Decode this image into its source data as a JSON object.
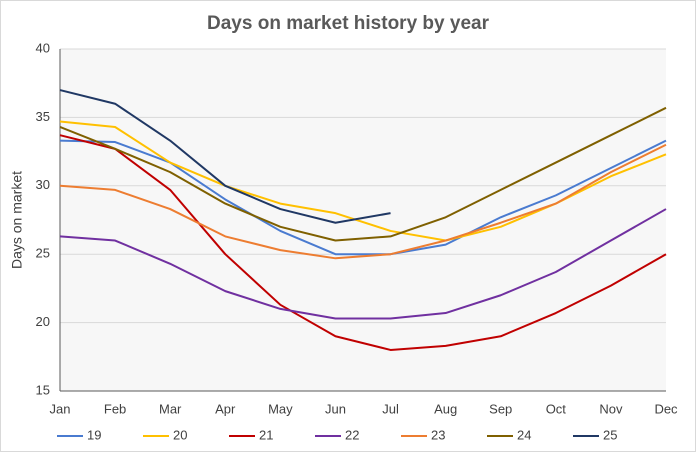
{
  "chart_data": {
    "type": "line",
    "title": "Days on market history by year",
    "y_label": "Days on market",
    "categories": [
      "Jan",
      "Feb",
      "Mar",
      "Apr",
      "May",
      "Jun",
      "Jul",
      "Aug",
      "Sep",
      "Oct",
      "Nov",
      "Dec"
    ],
    "ylim": [
      15,
      40
    ],
    "yticks": [
      15,
      20,
      25,
      30,
      35,
      40
    ],
    "grid": true,
    "legend": "bottom",
    "series": [
      {
        "name": "19",
        "color": "#4a7bd0",
        "values": [
          33.3,
          33.2,
          31.7,
          29,
          26.7,
          25,
          25,
          25.7,
          27.7,
          29.3,
          31.3,
          33.3
        ]
      },
      {
        "name": "20",
        "color": "#ffc000",
        "values": [
          34.7,
          34.3,
          31.7,
          30,
          28.7,
          28,
          26.7,
          26,
          27,
          28.7,
          30.7,
          32.3
        ]
      },
      {
        "name": "21",
        "color": "#c00000",
        "values": [
          33.7,
          32.7,
          29.7,
          25,
          21.3,
          19,
          18,
          18.3,
          19,
          20.7,
          22.7,
          25
        ]
      },
      {
        "name": "22",
        "color": "#7030a0",
        "values": [
          26.3,
          26,
          24.3,
          22.3,
          21,
          20.3,
          20.3,
          20.7,
          22,
          23.7,
          26,
          28.3
        ]
      },
      {
        "name": "23",
        "color": "#ed7d31",
        "values": [
          30,
          29.7,
          28.3,
          26.3,
          25.3,
          24.7,
          25,
          26,
          27.3,
          28.7,
          31,
          33
        ]
      },
      {
        "name": "24",
        "color": "#7f6000",
        "values": [
          34.3,
          32.7,
          31,
          28.7,
          27,
          26,
          26.3,
          27.7,
          29.7,
          31.7,
          33.7,
          35.7
        ]
      },
      {
        "name": "25",
        "color": "#203864",
        "values": [
          37,
          36,
          33.3,
          30,
          28.3,
          27.3,
          28,
          null,
          null,
          null,
          null,
          null
        ]
      }
    ]
  }
}
